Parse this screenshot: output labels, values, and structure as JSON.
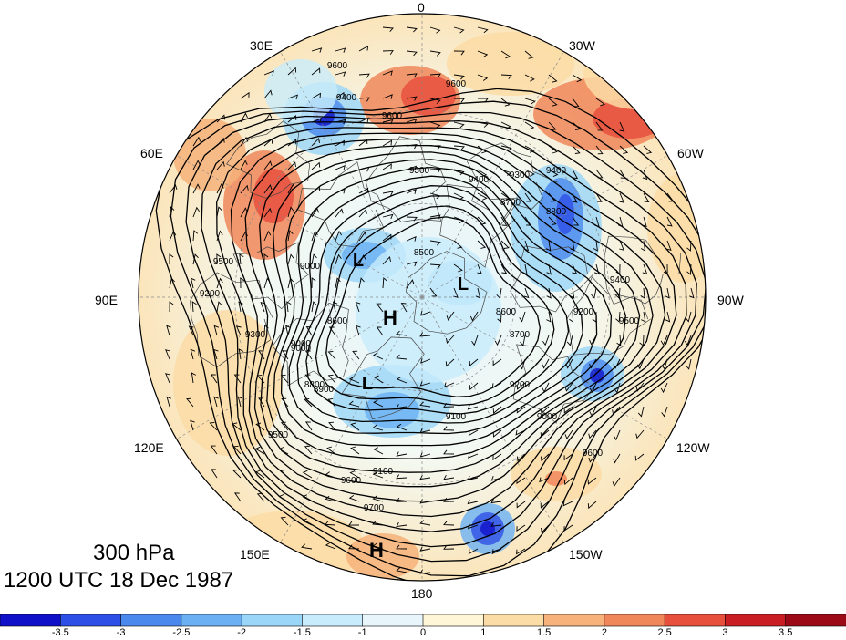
{
  "title": {
    "level": "300 hPa",
    "time": "1200 UTC 18 Dec 1987"
  },
  "longitude_labels": [
    {
      "id": "lon-0",
      "text": "0"
    },
    {
      "id": "lon-30w",
      "text": "30W"
    },
    {
      "id": "lon-60w",
      "text": "60W"
    },
    {
      "id": "lon-90w",
      "text": "90W"
    },
    {
      "id": "lon-120w",
      "text": "120W"
    },
    {
      "id": "lon-150w",
      "text": "150W"
    },
    {
      "id": "lon-180",
      "text": "180"
    },
    {
      "id": "lon-150e",
      "text": "150E"
    },
    {
      "id": "lon-120e",
      "text": "120E"
    },
    {
      "id": "lon-90e",
      "text": "90E"
    },
    {
      "id": "lon-60e",
      "text": "60E"
    },
    {
      "id": "lon-30e",
      "text": "30E"
    }
  ],
  "pressure_centers": [
    {
      "text": "L"
    },
    {
      "text": "L"
    },
    {
      "text": "L"
    },
    {
      "text": "H"
    },
    {
      "text": "H"
    }
  ],
  "contour_labels": [
    "9600",
    "9400",
    "9600",
    "9600",
    "9300",
    "9400",
    "9300",
    "9400",
    "8700",
    "8800",
    "8500",
    "9000",
    "8600",
    "8700",
    "8600",
    "8800",
    "9000",
    "9200",
    "9100",
    "9000",
    "9500",
    "9200",
    "9300",
    "9500",
    "9600",
    "9700",
    "9600",
    "8900",
    "9000",
    "9100",
    "9200",
    "9400",
    "9500"
  ],
  "colorbar": {
    "ticks": [
      "-3.5",
      "-3",
      "-2.5",
      "-2",
      "-1.5",
      "-1",
      "0",
      "1",
      "1.5",
      "2",
      "2.5",
      "3",
      "3.5"
    ],
    "colors": [
      "#1010c8",
      "#2e4fe6",
      "#4a88ee",
      "#6ab0f2",
      "#9ad6f7",
      "#c8ecfb",
      "#e8f6fc",
      "#fff6d8",
      "#fbdca6",
      "#f6b27a",
      "#f0875a",
      "#e8503e",
      "#c81e24",
      "#9c0a18"
    ]
  },
  "colors": {
    "warm_anomaly": "#f0875a",
    "cold_anomaly": "#2e4fe6",
    "contour": "#000000",
    "coastline": "#444444"
  }
}
